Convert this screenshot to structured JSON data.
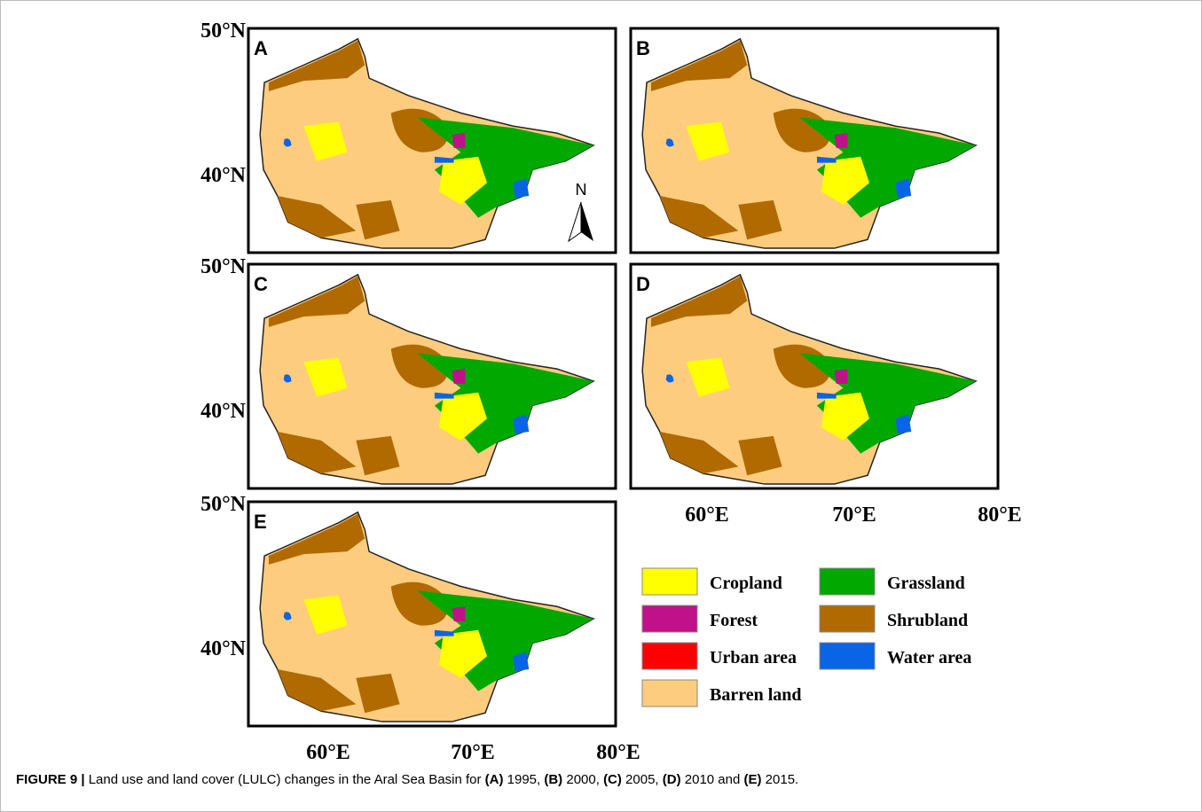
{
  "panels": [
    {
      "label": "A"
    },
    {
      "label": "B"
    },
    {
      "label": "C"
    },
    {
      "label": "D"
    },
    {
      "label": "E"
    }
  ],
  "axes": {
    "lat": [
      "50°N",
      "40°N"
    ],
    "lon": [
      "60°E",
      "70°E",
      "80°E"
    ]
  },
  "north": "N",
  "legend": [
    {
      "name": "Cropland",
      "color": "#ffff00"
    },
    {
      "name": "Grassland",
      "color": "#00a800"
    },
    {
      "name": "Forest",
      "color": "#c0118a"
    },
    {
      "name": "Shrubland",
      "color": "#b06a00"
    },
    {
      "name": "Urban area",
      "color": "#ff0000"
    },
    {
      "name": "Water area",
      "color": "#0a64e6"
    },
    {
      "name": "Barren land",
      "color": "#fdcc7e"
    }
  ],
  "caption": {
    "label": "FIGURE 9 |",
    "segments": [
      " Land use and land cover (LULC) changes in the Aral Sea Basin for ",
      "(A)",
      " 1995, ",
      "(B)",
      " 2000, ",
      "(C)",
      " 2005, ",
      "(D)",
      " 2010 and ",
      "(E)",
      " 2015."
    ]
  }
}
